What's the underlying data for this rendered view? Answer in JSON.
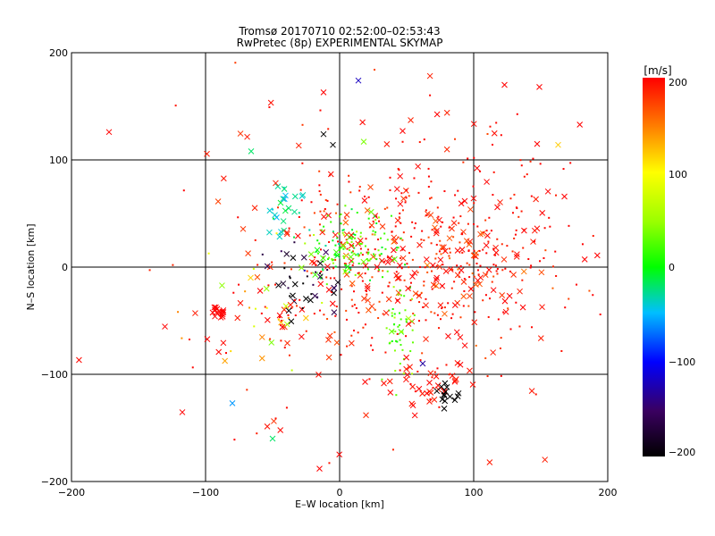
{
  "chart_data": {
    "type": "scatter",
    "title": "Tromsø 20170710 02:52:00–02:53:43",
    "subtitle": "RwPretec (8p) EXPERIMENTAL SKYMAP",
    "xlabel": "E–W location [km]",
    "ylabel": "N–S location [km]",
    "xlim": [
      -200,
      200
    ],
    "ylim": [
      -200,
      200
    ],
    "x_ticks": [
      "−200",
      "−100",
      "0",
      "100",
      "200"
    ],
    "y_ticks": [
      "200",
      "100",
      "0",
      "−100",
      "−200"
    ],
    "grid": true,
    "colorbar": {
      "label": "[m/s]",
      "range": [
        -200,
        200
      ],
      "ticks": [
        "200",
        "100",
        "0",
        "−100",
        "−200"
      ],
      "colormap": "rainbow (black → purple → blue → cyan → green → yellow → red)"
    },
    "markers": [
      "x",
      "dot"
    ],
    "points_sample": [
      {
        "x": -172,
        "y": 126,
        "v": 200,
        "m": "x"
      },
      {
        "x": -66,
        "y": 108,
        "v": -20,
        "m": "x"
      },
      {
        "x": -12,
        "y": 163,
        "v": 200,
        "m": "x"
      },
      {
        "x": 14,
        "y": 174,
        "v": -120,
        "m": "x"
      },
      {
        "x": -12,
        "y": 124,
        "v": -200,
        "m": "x"
      },
      {
        "x": -5,
        "y": 114,
        "v": -200,
        "m": "x"
      },
      {
        "x": 18,
        "y": 117,
        "v": 40,
        "m": "x"
      },
      {
        "x": 47,
        "y": 127,
        "v": 200,
        "m": "x"
      },
      {
        "x": 123,
        "y": 170,
        "v": 200,
        "m": "x"
      },
      {
        "x": 149,
        "y": 168,
        "v": 200,
        "m": "x"
      },
      {
        "x": 163,
        "y": 114,
        "v": 120,
        "m": "x"
      },
      {
        "x": -44,
        "y": 60,
        "v": -10,
        "m": "x"
      },
      {
        "x": -38,
        "y": 55,
        "v": -20,
        "m": "x"
      },
      {
        "x": -89,
        "y": -42,
        "v": 200,
        "m": "x"
      },
      {
        "x": -93,
        "y": -46,
        "v": 200,
        "m": "x"
      },
      {
        "x": -80,
        "y": -127,
        "v": -60,
        "m": "x"
      },
      {
        "x": -50,
        "y": -160,
        "v": -20,
        "m": "x"
      },
      {
        "x": -15,
        "y": -188,
        "v": 200,
        "m": "x"
      },
      {
        "x": 80,
        "y": -112,
        "v": -200,
        "m": "x"
      },
      {
        "x": 86,
        "y": -124,
        "v": -200,
        "m": "x"
      },
      {
        "x": 78,
        "y": -132,
        "v": -200,
        "m": "x"
      },
      {
        "x": 62,
        "y": -90,
        "v": -130,
        "m": "x"
      },
      {
        "x": 45,
        "y": -68,
        "v": 20,
        "m": "dot"
      },
      {
        "x": 10,
        "y": 20,
        "v": 10,
        "m": "dot"
      },
      {
        "x": 60,
        "y": 0,
        "v": 200,
        "m": "dot"
      },
      {
        "x": 100,
        "y": 40,
        "v": 200,
        "m": "dot"
      }
    ]
  }
}
